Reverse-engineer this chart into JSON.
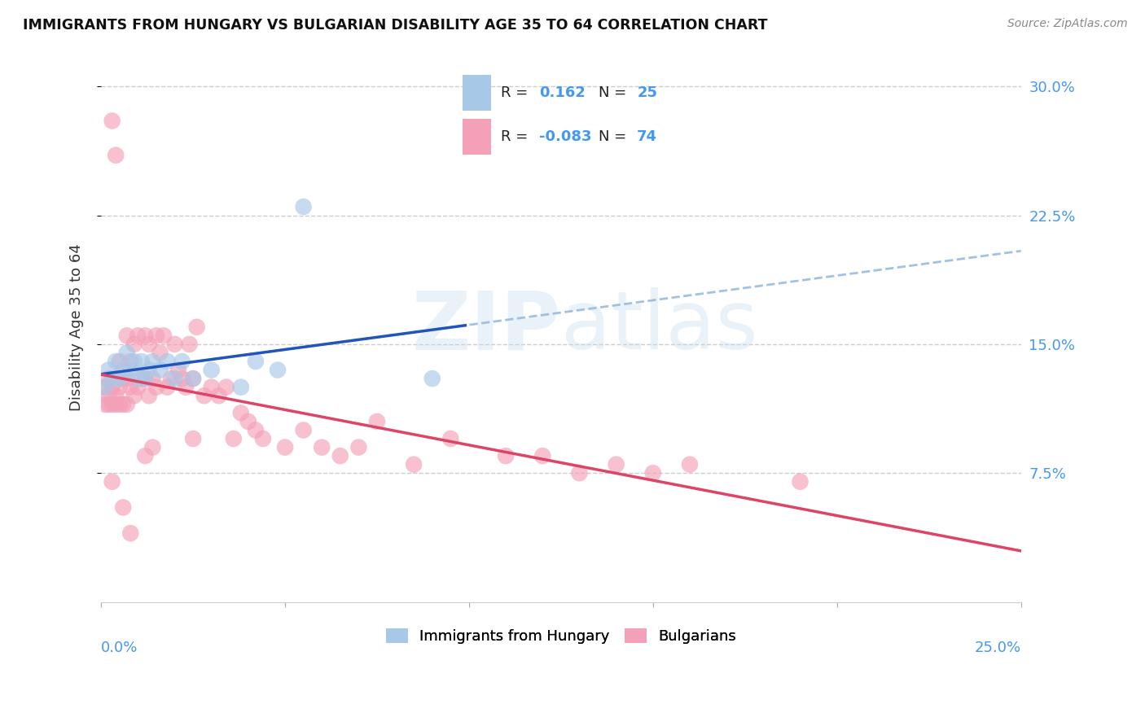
{
  "title": "IMMIGRANTS FROM HUNGARY VS BULGARIAN DISABILITY AGE 35 TO 64 CORRELATION CHART",
  "source": "Source: ZipAtlas.com",
  "ylabel": "Disability Age 35 to 64",
  "ytick_labels": [
    "7.5%",
    "15.0%",
    "22.5%",
    "30.0%"
  ],
  "ytick_values": [
    0.075,
    0.15,
    0.225,
    0.3
  ],
  "xlim": [
    0.0,
    0.25
  ],
  "ylim": [
    0.0,
    0.32
  ],
  "color_hungary": "#a8c8e8",
  "color_bulgarians": "#f4a0b8",
  "line_color_hungary": "#2255bb",
  "line_color_bulgarians": "#dd4466",
  "dashed_line_color": "#99bbdd",
  "watermark": "ZIPatlas",
  "hungary_x": [
    0.001,
    0.002,
    0.003,
    0.004,
    0.005,
    0.006,
    0.007,
    0.008,
    0.009,
    0.01,
    0.011,
    0.012,
    0.013,
    0.014,
    0.016,
    0.018,
    0.02,
    0.022,
    0.025,
    0.03,
    0.038,
    0.042,
    0.048,
    0.055,
    0.09
  ],
  "hungary_y": [
    0.125,
    0.135,
    0.13,
    0.14,
    0.13,
    0.135,
    0.145,
    0.135,
    0.14,
    0.13,
    0.14,
    0.13,
    0.135,
    0.14,
    0.135,
    0.14,
    0.13,
    0.14,
    0.13,
    0.135,
    0.125,
    0.14,
    0.135,
    0.23,
    0.13
  ],
  "bulgarians_x": [
    0.001,
    0.001,
    0.002,
    0.002,
    0.002,
    0.003,
    0.003,
    0.003,
    0.004,
    0.004,
    0.004,
    0.005,
    0.005,
    0.005,
    0.006,
    0.006,
    0.007,
    0.007,
    0.007,
    0.008,
    0.008,
    0.009,
    0.009,
    0.01,
    0.01,
    0.011,
    0.012,
    0.012,
    0.013,
    0.013,
    0.014,
    0.015,
    0.015,
    0.016,
    0.017,
    0.018,
    0.019,
    0.02,
    0.021,
    0.022,
    0.023,
    0.024,
    0.025,
    0.026,
    0.028,
    0.03,
    0.032,
    0.034,
    0.036,
    0.038,
    0.04,
    0.042,
    0.044,
    0.05,
    0.055,
    0.06,
    0.065,
    0.07,
    0.075,
    0.085,
    0.095,
    0.11,
    0.12,
    0.13,
    0.14,
    0.15,
    0.16,
    0.19,
    0.025,
    0.014,
    0.012,
    0.008,
    0.006,
    0.003
  ],
  "bulgarians_y": [
    0.115,
    0.125,
    0.12,
    0.13,
    0.115,
    0.28,
    0.125,
    0.115,
    0.12,
    0.26,
    0.115,
    0.14,
    0.125,
    0.115,
    0.13,
    0.115,
    0.155,
    0.13,
    0.115,
    0.14,
    0.125,
    0.15,
    0.12,
    0.155,
    0.125,
    0.13,
    0.155,
    0.13,
    0.15,
    0.12,
    0.13,
    0.155,
    0.125,
    0.145,
    0.155,
    0.125,
    0.13,
    0.15,
    0.135,
    0.13,
    0.125,
    0.15,
    0.13,
    0.16,
    0.12,
    0.125,
    0.12,
    0.125,
    0.095,
    0.11,
    0.105,
    0.1,
    0.095,
    0.09,
    0.1,
    0.09,
    0.085,
    0.09,
    0.105,
    0.08,
    0.095,
    0.085,
    0.085,
    0.075,
    0.08,
    0.075,
    0.08,
    0.07,
    0.095,
    0.09,
    0.085,
    0.04,
    0.055,
    0.07
  ]
}
